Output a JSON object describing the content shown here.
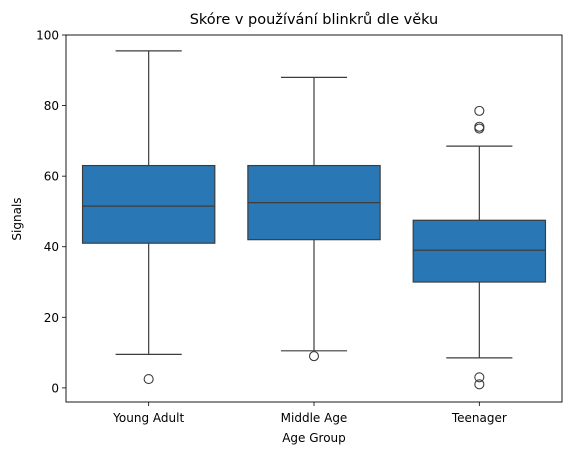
{
  "chart_data": {
    "type": "box",
    "title": "Skóre v používání blinkrů dle věku",
    "xlabel": "Age Group",
    "ylabel": "Signals",
    "ylim": [
      -4,
      100
    ],
    "yticks": [
      0,
      20,
      40,
      60,
      80,
      100
    ],
    "grid": false,
    "color": "#2978b5",
    "categories": [
      "Young Adult",
      "Middle Age",
      "Teenager"
    ],
    "boxes": [
      {
        "name": "Young Adult",
        "whisker_low": 9.5,
        "q1": 41,
        "median": 51.5,
        "q3": 63,
        "whisker_high": 95.5,
        "outliers": [
          2.5
        ]
      },
      {
        "name": "Middle Age",
        "whisker_low": 10.5,
        "q1": 42,
        "median": 52.5,
        "q3": 63,
        "whisker_high": 88,
        "outliers": [
          9
        ]
      },
      {
        "name": "Teenager",
        "whisker_low": 8.5,
        "q1": 30,
        "median": 39,
        "q3": 47.5,
        "whisker_high": 68.5,
        "outliers": [
          78.5,
          73.5,
          74,
          3,
          1
        ]
      }
    ]
  }
}
